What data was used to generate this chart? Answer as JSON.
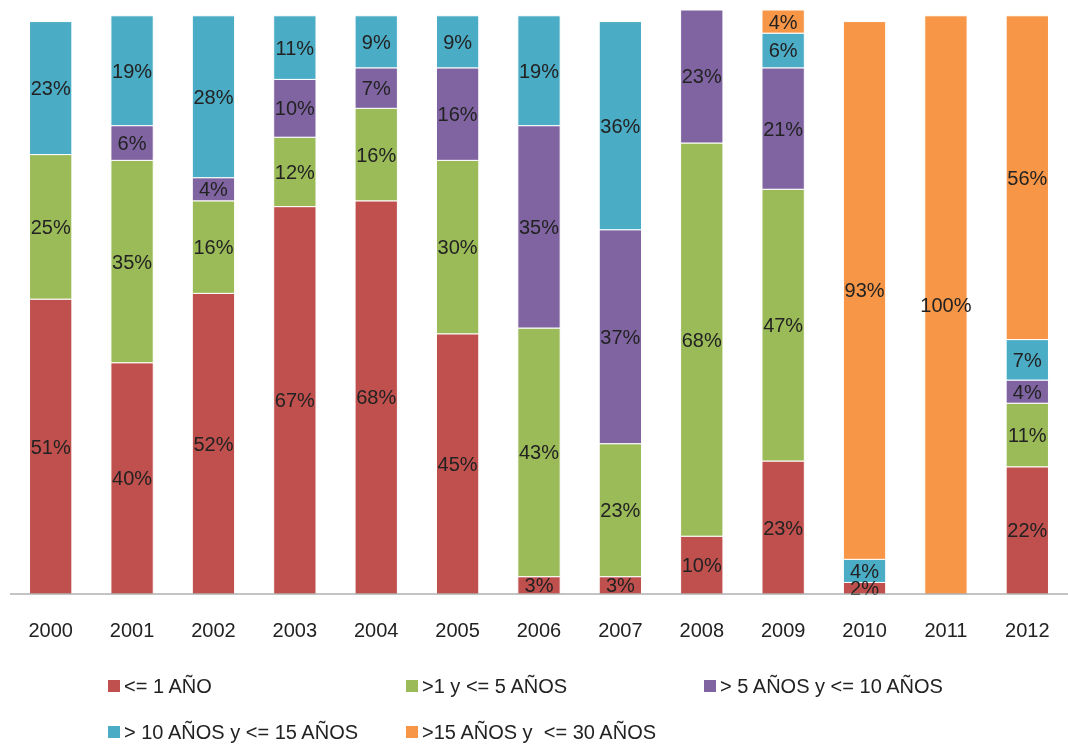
{
  "chart_data": {
    "type": "bar",
    "stacked": true,
    "categories": [
      "2000",
      "2001",
      "2002",
      "2003",
      "2004",
      "2005",
      "2006",
      "2007",
      "2008",
      "2009",
      "2010",
      "2011",
      "2012"
    ],
    "ylim": [
      0,
      101
    ],
    "tick_labels": "x",
    "legend": "bottom",
    "series": [
      {
        "name": "<= 1 AÑO",
        "color": "#c0504d",
        "values": [
          51,
          40,
          52,
          67,
          68,
          45,
          3,
          3,
          10,
          23,
          2,
          null,
          22
        ],
        "value_labels": [
          "51%",
          "40%",
          "52%",
          "67%",
          "68%",
          "45%",
          "3%",
          "3%",
          "10%",
          "23%",
          "2%",
          null,
          "22%"
        ]
      },
      {
        "name": ">1 y <= 5 AÑOS",
        "color": "#9bbb59",
        "values": [
          25,
          35,
          16,
          12,
          16,
          30,
          43,
          23,
          68,
          47,
          null,
          null,
          11
        ],
        "value_labels": [
          "25%",
          "35%",
          "16%",
          "12%",
          "16%",
          "30%",
          "43%",
          "23%",
          "68%",
          "47%",
          null,
          null,
          "11%"
        ]
      },
      {
        "name": "> 5 AÑOS y <= 10 AÑOS",
        "color": "#8064a2",
        "values": [
          null,
          6,
          4,
          10,
          7,
          16,
          35,
          37,
          23,
          21,
          null,
          null,
          4
        ],
        "value_labels": [
          null,
          "6%",
          "4%",
          "10%",
          "7%",
          "16%",
          "35%",
          "37%",
          "23%",
          "21%",
          null,
          null,
          "4%"
        ]
      },
      {
        "name": "> 10 AÑOS y <= 15 AÑOS",
        "color": "#4bacc6",
        "values": [
          23,
          19,
          28,
          11,
          9,
          9,
          19,
          36,
          null,
          6,
          4,
          null,
          7
        ],
        "value_labels": [
          "23%",
          "19%",
          "28%",
          "11%",
          "9%",
          "9%",
          "19%",
          "36%",
          null,
          "6%",
          "4%",
          null,
          "7%"
        ]
      },
      {
        "name": ">15 AÑOS y  <= 30 AÑOS",
        "color": "#f79646",
        "values": [
          null,
          null,
          null,
          null,
          null,
          null,
          null,
          null,
          null,
          4,
          93,
          100,
          56
        ],
        "value_labels": [
          null,
          null,
          null,
          null,
          null,
          null,
          null,
          null,
          null,
          "4%",
          "93%",
          "100%",
          "56%"
        ]
      }
    ]
  }
}
